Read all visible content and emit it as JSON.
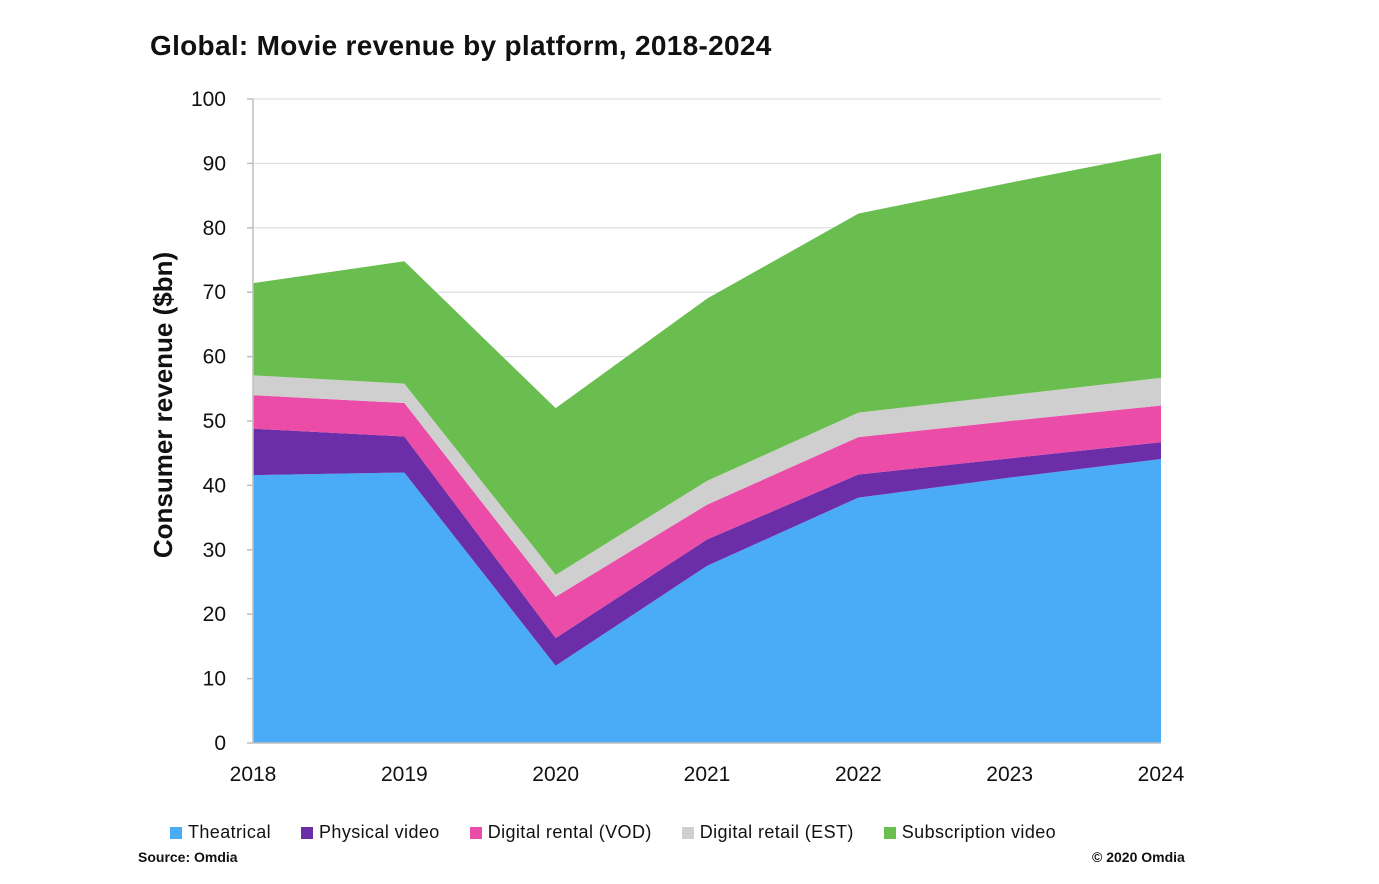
{
  "chart_data": {
    "type": "area",
    "stacked": true,
    "title": "Global: Movie revenue by platform, 2018-2024",
    "xlabel": "",
    "ylabel": "Consumer revenue ($bn)",
    "ylim": [
      0,
      100
    ],
    "yticks": [
      0,
      10,
      20,
      30,
      40,
      50,
      60,
      70,
      80,
      90,
      100
    ],
    "grid": true,
    "legend_position": "bottom",
    "categories": [
      "2018",
      "2019",
      "2020",
      "2021",
      "2022",
      "2023",
      "2024"
    ],
    "series": [
      {
        "name": "Theatrical",
        "color": "#4aacf7",
        "values": [
          41.6,
          42.0,
          12.0,
          27.5,
          38.1,
          41.2,
          44.1
        ]
      },
      {
        "name": "Physical video",
        "color": "#6c2ea8",
        "values": [
          7.2,
          5.6,
          4.3,
          4.1,
          3.6,
          3.0,
          2.6
        ]
      },
      {
        "name": "Digital rental (VOD)",
        "color": "#ea4ca8",
        "values": [
          5.2,
          5.2,
          6.4,
          5.4,
          5.8,
          5.8,
          5.7
        ]
      },
      {
        "name": "Digital retail (EST)",
        "color": "#cfcfcf",
        "values": [
          3.1,
          3.0,
          3.4,
          3.7,
          3.8,
          4.0,
          4.3
        ]
      },
      {
        "name": "Subscription video",
        "color": "#6abe4f",
        "values": [
          14.3,
          19.0,
          25.9,
          28.3,
          30.9,
          33.0,
          34.9
        ]
      }
    ]
  },
  "footer": {
    "source": "Source: Omdia",
    "copyright": "© 2020 Omdia"
  }
}
